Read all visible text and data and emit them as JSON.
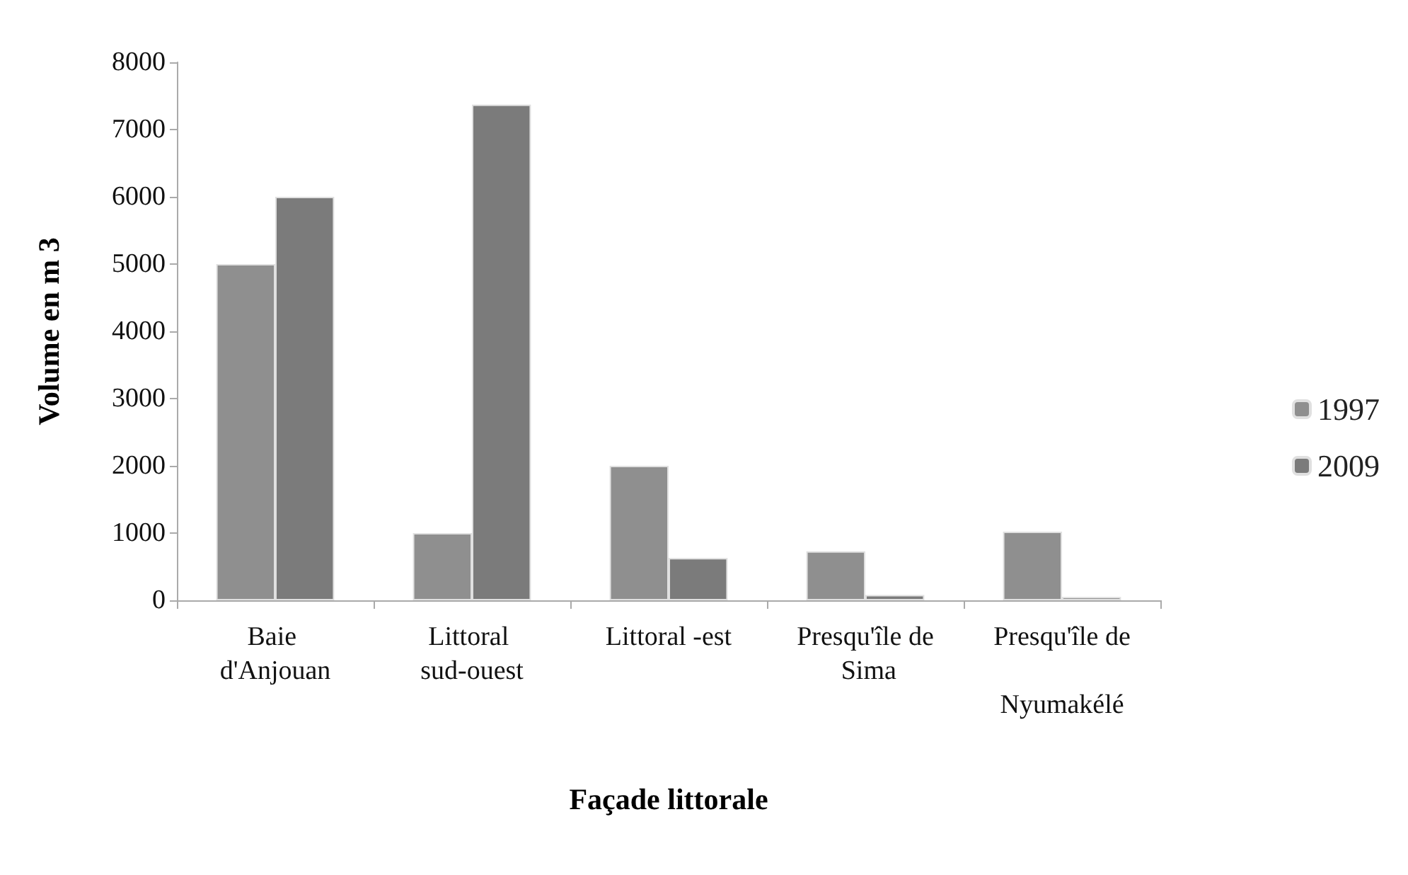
{
  "chart_data": {
    "type": "bar",
    "xlabel": "Façade littorale",
    "ylabel": "Volume en m 3",
    "categories": [
      "Baie d'Anjouan",
      "Littoral sud-ouest",
      "Littoral -est",
      "Presqu'île de Sima",
      "Presqu'île de Nyumakélé"
    ],
    "series": [
      {
        "name": "1997",
        "color": "#8f8f8f",
        "values": [
          5000,
          1000,
          2000,
          730,
          1020
        ]
      },
      {
        "name": "2009",
        "color": "#7b7b7b",
        "values": [
          6000,
          7370,
          630,
          80,
          50
        ]
      }
    ],
    "ylim": [
      0,
      8000
    ],
    "yticks": [
      0,
      1000,
      2000,
      3000,
      4000,
      5000,
      6000,
      7000,
      8000
    ],
    "grid": false,
    "legend": "right"
  }
}
